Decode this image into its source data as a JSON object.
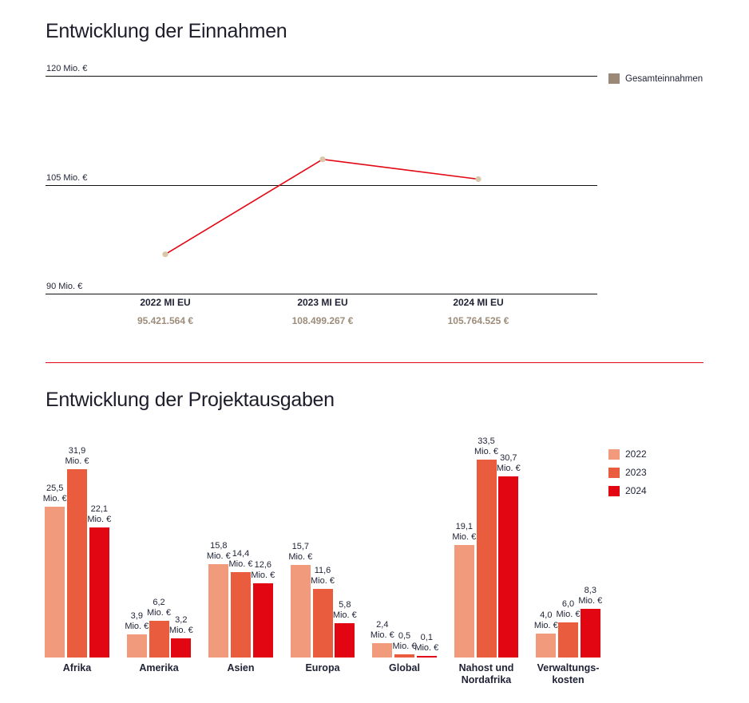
{
  "page": {
    "background": "#ffffff"
  },
  "colors": {
    "accent_red": "#e30613",
    "series_2022": "#f29a7c",
    "series_2023": "#e95c3d",
    "series_2024": "#e20613",
    "taupe": "#9b8977",
    "marker_tan": "#d9c7a9",
    "text_dark": "#1e2235",
    "gridline": "#121212"
  },
  "chart_data": [
    {
      "type": "line",
      "title": "Entwicklung der Einnahmen",
      "legend": [
        {
          "label": "Gesamteinnahmen",
          "color": "#9b8977"
        }
      ],
      "legend_position": "right",
      "x": [
        "2022 MI EU",
        "2023 MI EU",
        "2024 MI EU"
      ],
      "values_mio": [
        95.421564,
        108.499267,
        105.764525
      ],
      "value_labels": [
        "95.421.564 €",
        "108.499.267 €",
        "105.764.525 €"
      ],
      "ylim": [
        90,
        120
      ],
      "yticks": [
        {
          "value": 120,
          "label": "120 Mio. €"
        },
        {
          "value": 105,
          "label": "105 Mio. €"
        },
        {
          "value": 90,
          "label": "90 Mio. €"
        }
      ],
      "grid": true,
      "line_color": "#e30613",
      "marker_color": "#d9c7a9"
    },
    {
      "type": "bar",
      "title": "Entwicklung der Projektausgaben",
      "categories": [
        "Afrika",
        "Amerika",
        "Asien",
        "Europa",
        "Global",
        "Nahost und\nNordafrika",
        "Verwaltungs-\nkosten"
      ],
      "series": [
        {
          "name": "2022",
          "color": "#f29a7c",
          "values": [
            25.5,
            3.9,
            15.8,
            15.7,
            2.4,
            19.1,
            4.0
          ]
        },
        {
          "name": "2023",
          "color": "#e95c3d",
          "values": [
            31.9,
            6.2,
            14.4,
            11.6,
            0.5,
            33.5,
            6.0
          ]
        },
        {
          "name": "2024",
          "color": "#e20613",
          "values": [
            22.1,
            3.2,
            12.6,
            5.8,
            0.1,
            30.7,
            8.3
          ]
        }
      ],
      "unit_label": "Mio. €",
      "decimal_separator": ",",
      "legend_position": "right",
      "grid": false
    }
  ]
}
